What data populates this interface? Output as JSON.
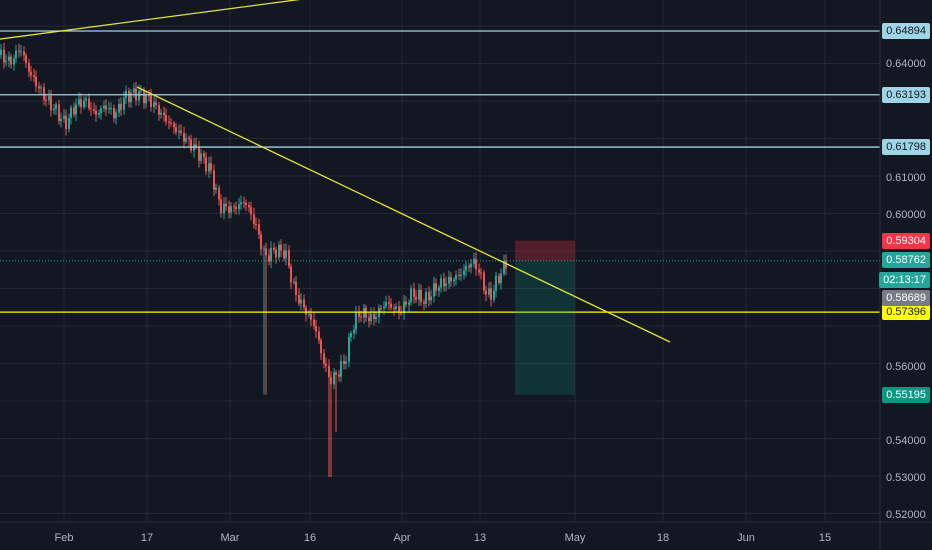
{
  "chart_data": {
    "type": "candlestick",
    "x_ticks": [
      "Feb",
      "17",
      "Mar",
      "16",
      "Apr",
      "13",
      "May",
      "18",
      "Jun",
      "15"
    ],
    "y_ticks": [
      "0.64000",
      "0.61000",
      "0.60000",
      "0.56000",
      "0.54000",
      "0.53000",
      "0.52000"
    ],
    "ylim": [
      0.515,
      0.655
    ],
    "horizontal_levels": [
      {
        "label": "0.64894",
        "value": 0.64894,
        "color": "#9ed4e6"
      },
      {
        "label": "0.63193",
        "value": 0.63193,
        "color": "#9ed4e6"
      },
      {
        "label": "0.61798",
        "value": 0.61798,
        "color": "#9ed4e6"
      },
      {
        "label": "0.57396",
        "value": 0.57396,
        "color": "#ffff00"
      }
    ],
    "markers": [
      {
        "label": "0.59304",
        "value": 0.59304,
        "color": "#f23645",
        "role": "stop"
      },
      {
        "label": "0.58762",
        "value": 0.58762,
        "color": "#26a69a",
        "role": "last-price"
      },
      {
        "label": "02:13:17",
        "value": 0.5831,
        "color": "#26a69a",
        "role": "countdown"
      },
      {
        "label": "0.58689",
        "value": 0.58689,
        "color": "#787b86",
        "role": "prev"
      },
      {
        "label": "0.55195",
        "value": 0.55195,
        "color": "#089981",
        "role": "target"
      }
    ],
    "trendlines": [
      {
        "from": [
          "Jan 20",
          0.6465
        ],
        "to": [
          "Mar 27",
          0.66
        ],
        "color": "#e0e33b"
      },
      {
        "from": [
          "Feb 13",
          0.634
        ],
        "to": [
          "May 21",
          0.566
        ],
        "color": "#e0e33b"
      }
    ],
    "position": {
      "type": "short",
      "entry": 0.58762,
      "stop": 0.59304,
      "target": 0.55195,
      "start": "Apr 20",
      "end": "May 1"
    },
    "colors": {
      "up": "#26a69a",
      "down": "#ef5350",
      "background": "#131722",
      "grid": "#222733"
    }
  }
}
